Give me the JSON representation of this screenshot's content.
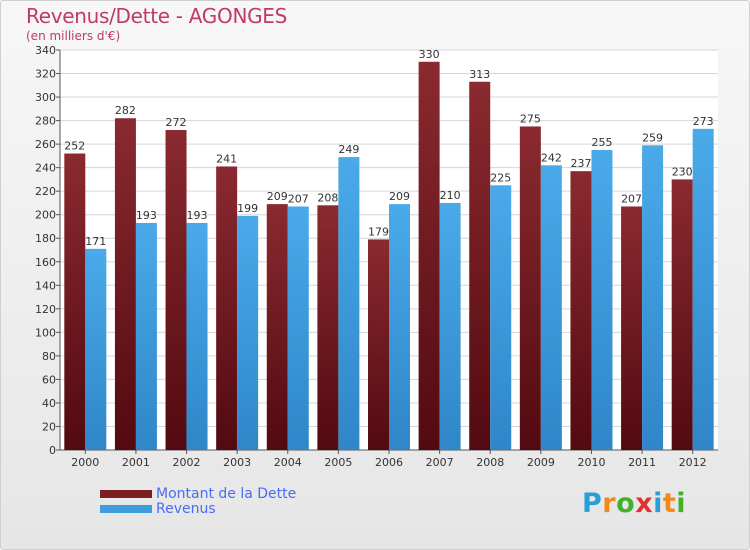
{
  "header": {
    "title": "Revenus/Dette - AGONGES",
    "subtitle": "(en milliers d'€)"
  },
  "colors": {
    "dette": "#7a1e23",
    "revenus": "#3d9ddf",
    "title": "#c0386e",
    "legend_text": "#4a6cf0"
  },
  "chart_data": {
    "type": "bar",
    "categories": [
      "2000",
      "2001",
      "2002",
      "2003",
      "2004",
      "2005",
      "2006",
      "2007",
      "2008",
      "2009",
      "2010",
      "2011",
      "2012"
    ],
    "series": [
      {
        "name": "Montant de la Dette",
        "values": [
          252,
          282,
          272,
          241,
          209,
          208,
          179,
          330,
          313,
          275,
          237,
          207,
          230
        ]
      },
      {
        "name": "Revenus",
        "values": [
          171,
          193,
          193,
          199,
          207,
          249,
          209,
          210,
          225,
          242,
          255,
          259,
          273
        ]
      }
    ],
    "ylim": [
      0,
      340
    ],
    "ytick_step": 20,
    "grid": true,
    "legend_position": "bottom-left"
  },
  "legend": {
    "items": [
      {
        "label": "Montant de la Dette"
      },
      {
        "label": "Revenus"
      }
    ]
  },
  "logo": {
    "letters": [
      "P",
      "r",
      "o",
      "x",
      "i",
      "t",
      "i"
    ],
    "colors": [
      "#2a9fd6",
      "#f18a1c",
      "#43b02a",
      "#e2322d",
      "#2a9fd6",
      "#f18a1c",
      "#43b02a"
    ]
  }
}
